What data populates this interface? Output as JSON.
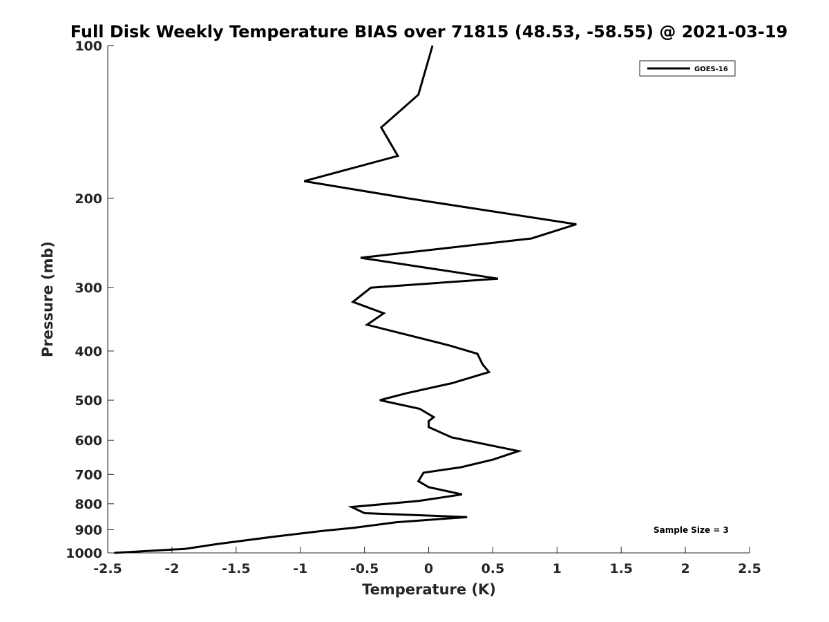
{
  "chart_data": {
    "type": "line",
    "title": "Full Disk Weekly Temperature BIAS over 71815 (48.53, -58.55) @ 2021-03-19",
    "xlabel": "Temperature (K)",
    "ylabel": "Pressure (mb)",
    "xlim": [
      -2.5,
      2.5
    ],
    "ylim": [
      1000,
      100
    ],
    "yscale": "log",
    "y_reversed": true,
    "xticks": [
      -2.5,
      -2,
      -1.5,
      -1,
      -0.5,
      0,
      0.5,
      1,
      1.5,
      2,
      2.5
    ],
    "xtick_labels": [
      "-2.5",
      "-2",
      "-1.5",
      "-1",
      "-0.5",
      "0",
      "0.5",
      "1",
      "1.5",
      "2",
      "2.5"
    ],
    "yticks": [
      100,
      200,
      300,
      400,
      500,
      600,
      700,
      800,
      900,
      1000
    ],
    "ytick_labels": [
      "100",
      "200",
      "300",
      "400",
      "500",
      "600",
      "700",
      "800",
      "900",
      "1000"
    ],
    "grid": false,
    "legend_position": "top-right",
    "series": [
      {
        "name": "GOES-16",
        "color": "#000000",
        "x": [
          0.03,
          -0.08,
          -0.37,
          -0.24,
          -0.97,
          -0.16,
          1.15,
          0.8,
          -0.53,
          0.54,
          -0.45,
          -0.59,
          -0.35,
          -0.48,
          0.16,
          0.38,
          0.42,
          0.47,
          0.18,
          -0.18,
          -0.38,
          -0.07,
          0.04,
          0.0,
          0.0,
          0.18,
          0.7,
          0.5,
          0.25,
          -0.04,
          -0.08,
          0.0,
          0.26,
          -0.08,
          -0.6,
          -0.5,
          0.3,
          -0.25,
          -0.58,
          -0.83,
          -1.22,
          -1.64,
          -1.9,
          -2.45
        ],
        "y": [
          100,
          125,
          145,
          165,
          185,
          200,
          225,
          240,
          262,
          288,
          300,
          320,
          337,
          355,
          390,
          405,
          425,
          440,
          463,
          485,
          500,
          520,
          540,
          550,
          565,
          592,
          630,
          655,
          678,
          695,
          722,
          742,
          767,
          790,
          812,
          835,
          850,
          870,
          892,
          905,
          930,
          960,
          982,
          1000
        ]
      }
    ],
    "annotations": [
      "Sample Size = 3"
    ]
  }
}
